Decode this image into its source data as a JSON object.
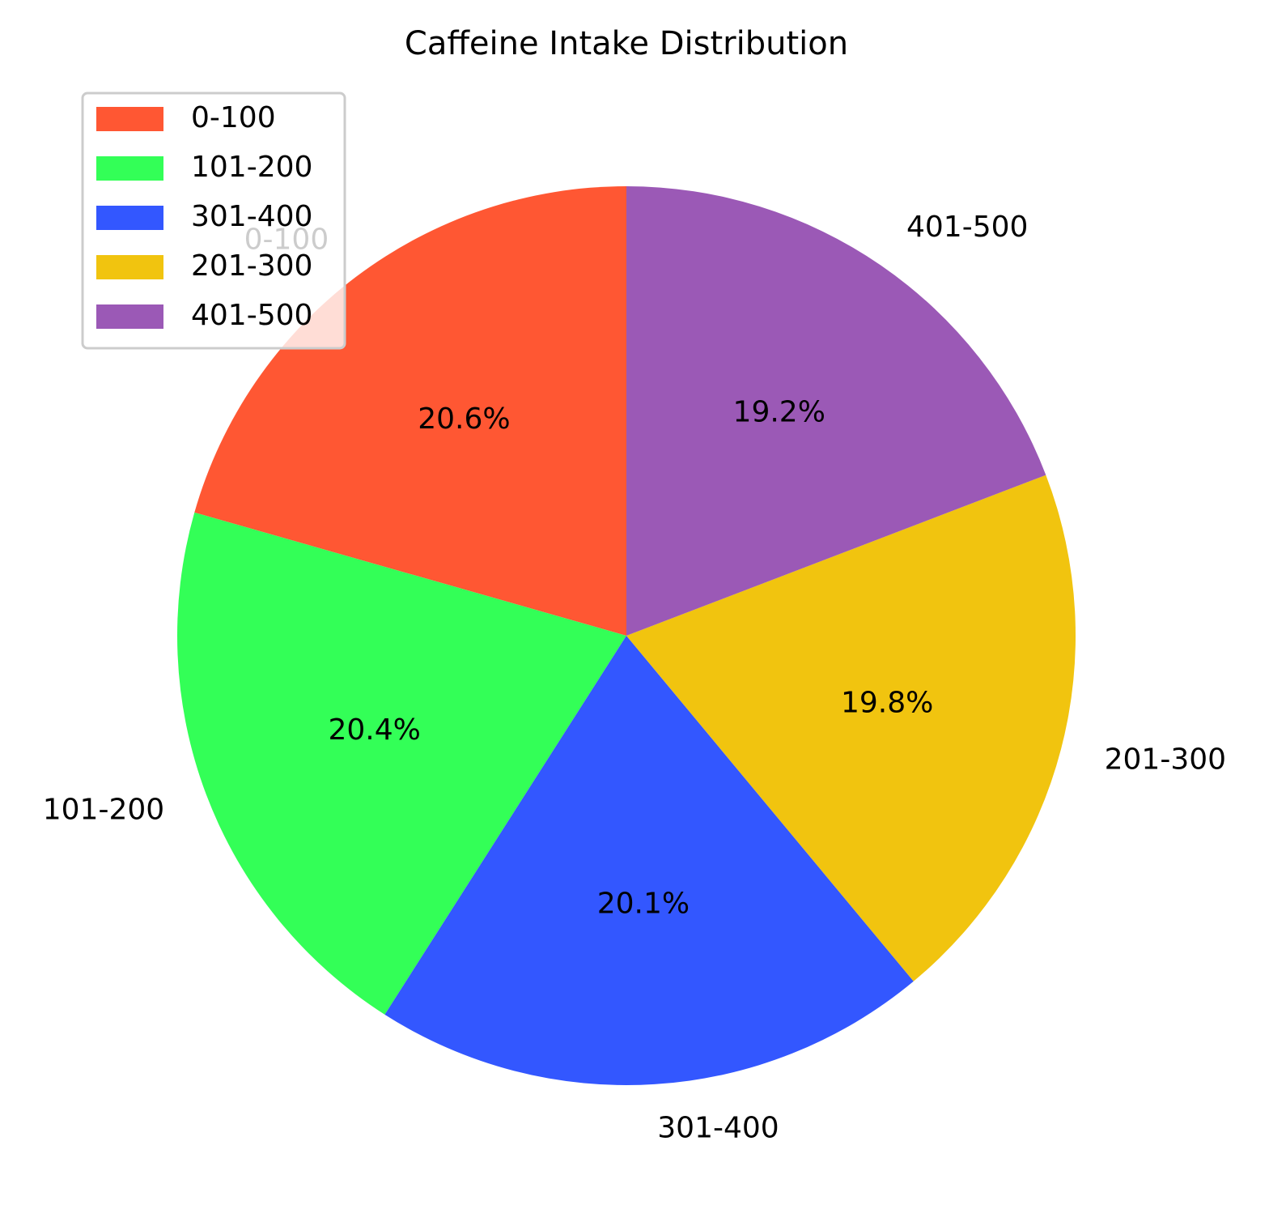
{
  "chart_data": {
    "type": "pie",
    "title": "Caffeine Intake Distribution",
    "start_angle_deg": 90,
    "direction": "counterclockwise",
    "slices": [
      {
        "label": "0-100",
        "value": 20.6,
        "pct_label": "20.6%",
        "color": "#FF5733"
      },
      {
        "label": "101-200",
        "value": 20.4,
        "pct_label": "20.4%",
        "color": "#33FF57"
      },
      {
        "label": "301-400",
        "value": 20.1,
        "pct_label": "20.1%",
        "color": "#3357FF"
      },
      {
        "label": "201-300",
        "value": 19.8,
        "pct_label": "19.8%",
        "color": "#F1C40F"
      },
      {
        "label": "401-500",
        "value": 19.2,
        "pct_label": "19.2%",
        "color": "#9B59B6"
      }
    ],
    "legend": {
      "placement": "upper-left",
      "entries": [
        "0-100",
        "101-200",
        "301-400",
        "201-300",
        "401-500"
      ]
    }
  }
}
